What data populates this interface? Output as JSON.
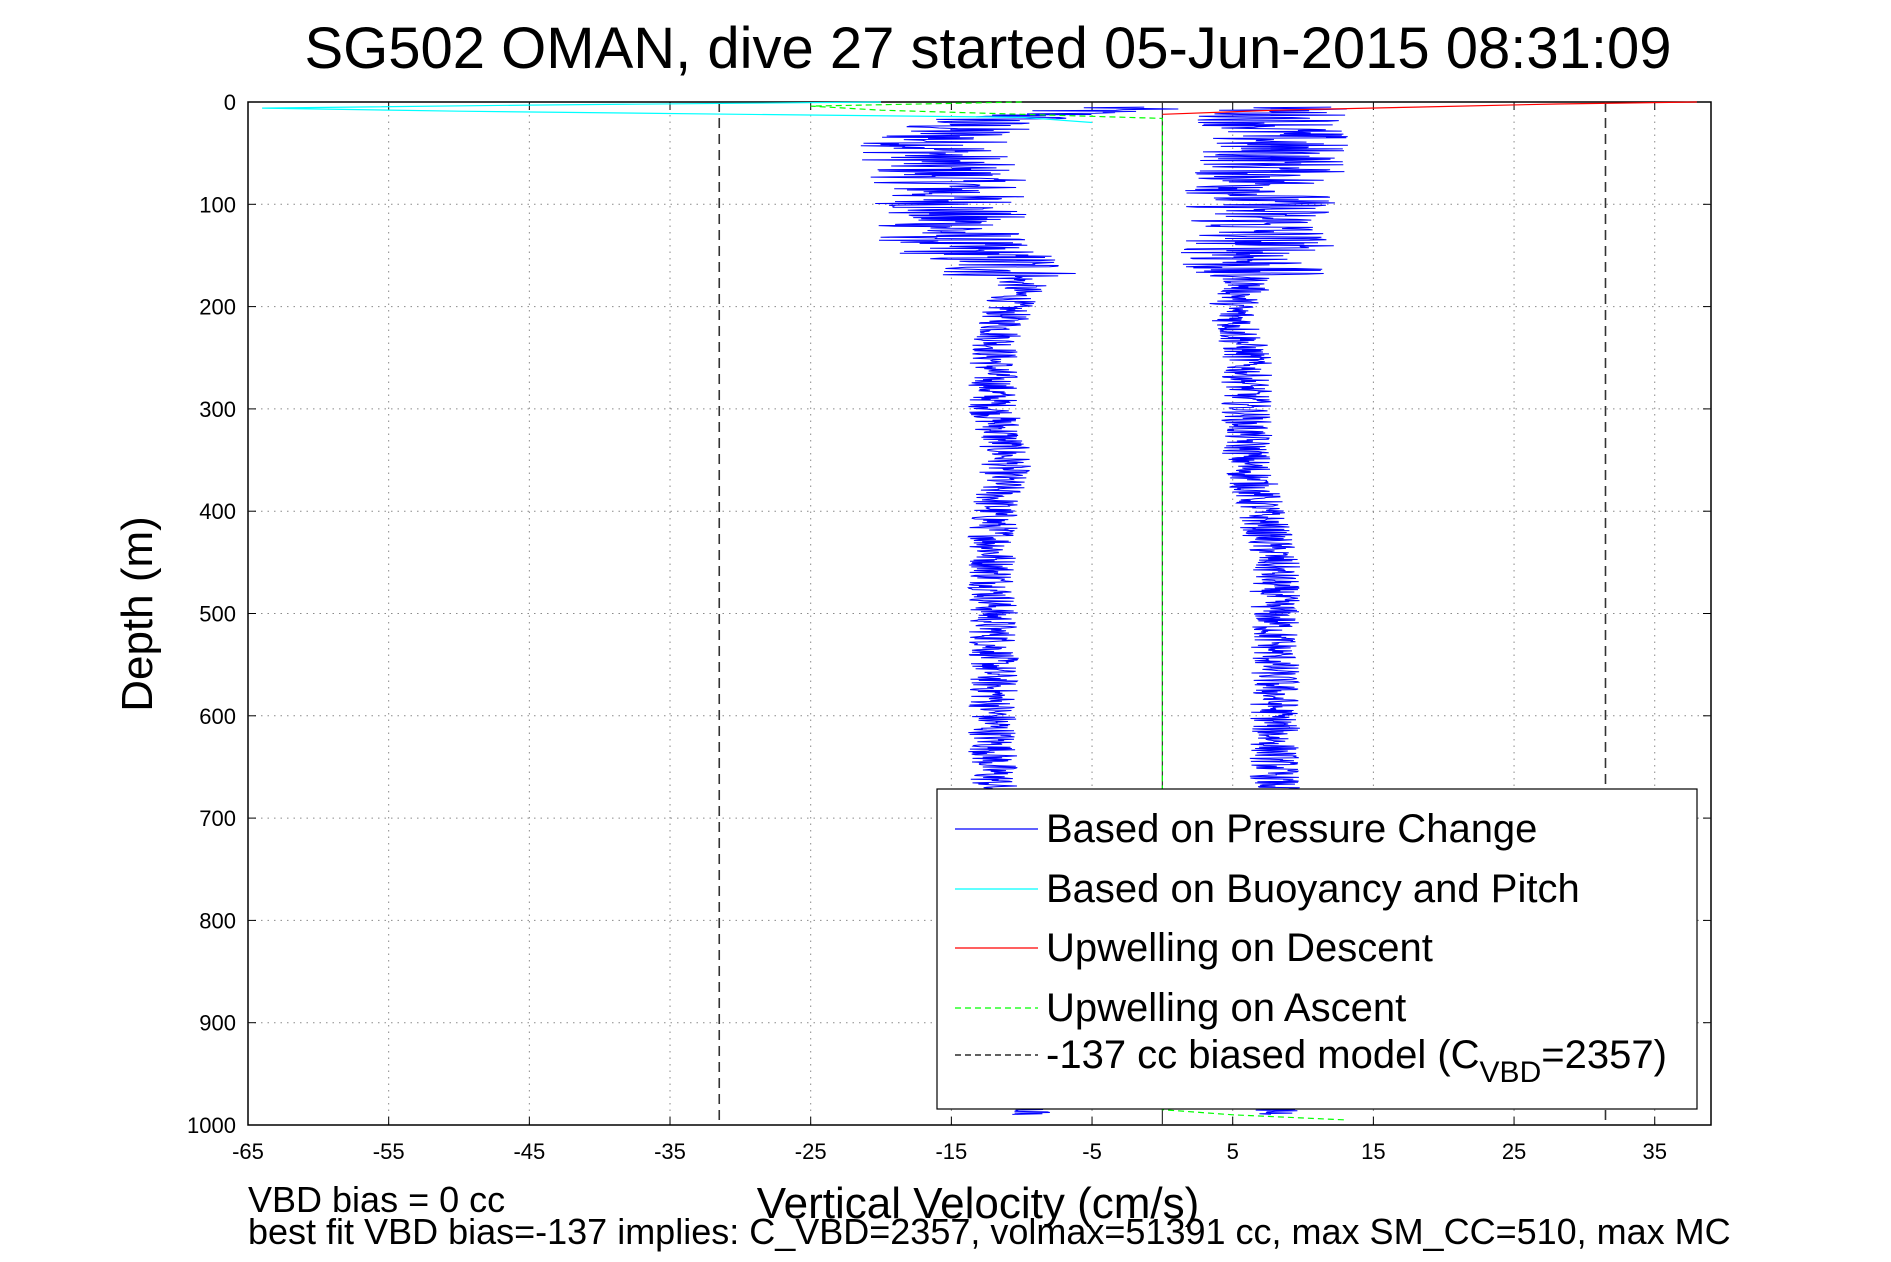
{
  "chart_data": {
    "type": "line",
    "title": "SG502 OMAN, dive 27 started 05-Jun-2015 08:31:09",
    "xlabel": "Vertical Velocity (cm/s)",
    "ylabel": "Depth (m)",
    "xlim": [
      -65,
      39
    ],
    "ylim": [
      0,
      1000
    ],
    "y_reversed": true,
    "grid": true,
    "xticks": [
      -65,
      -55,
      -45,
      -35,
      -25,
      -15,
      -5,
      5,
      15,
      25,
      35
    ],
    "yticks": [
      0,
      100,
      200,
      300,
      400,
      500,
      600,
      700,
      800,
      900,
      1000
    ],
    "legend_position": "lower-right",
    "legend": [
      {
        "label": "Based on Pressure Change",
        "color": "#0000ff",
        "style": "solid"
      },
      {
        "label": "Based on Buoyancy and Pitch",
        "color": "#00ffff",
        "style": "solid"
      },
      {
        "label": "Upwelling on Descent",
        "color": "#ff0000",
        "style": "solid"
      },
      {
        "label": "Upwelling on Ascent",
        "color": "#00ff00",
        "style": "dashed"
      },
      {
        "label_prefix": "-137 cc biased model (C",
        "label_sub": "VBD",
        "label_suffix": "=2357)",
        "color": "#000000",
        "style": "dashed"
      }
    ],
    "reference_lines": {
      "zero": 0,
      "model_dashed": [
        -31.5,
        31.5
      ]
    },
    "series": [
      {
        "name": "Based on Pressure Change",
        "color": "#0000ff",
        "segments": [
          {
            "part": "descent",
            "depth": [
              5,
              20,
              40,
              60,
              80,
              100,
              120,
              140,
              160,
              180,
              200,
              250,
              300,
              350,
              400,
              450,
              500,
              550,
              600,
              650,
              700,
              750,
              800,
              850,
              900,
              950,
              990
            ],
            "velocity": [
              -3,
              -14,
              -16,
              -16,
              -15,
              -15,
              -15,
              -15,
              -11,
              -10,
              -11,
              -12,
              -12,
              -11,
              -12,
              -12,
              -12,
              -12,
              -12,
              -12,
              -12,
              -12,
              -12,
              -12,
              -12,
              -12,
              -9
            ]
          },
          {
            "part": "ascent",
            "depth": [
              990,
              950,
              900,
              850,
              800,
              750,
              700,
              650,
              600,
              550,
              500,
              450,
              400,
              350,
              300,
              250,
              200,
              180,
              160,
              140,
              120,
              100,
              80,
              60,
              40,
              20,
              5
            ],
            "velocity": [
              8,
              8,
              8,
              8,
              8,
              8,
              8,
              8,
              8,
              8,
              8,
              8,
              7,
              6,
              6,
              6,
              5,
              6,
              6,
              7,
              7,
              7,
              7,
              8,
              8,
              8,
              8
            ]
          }
        ]
      },
      {
        "name": "Based on Buoyancy and Pitch",
        "color": "#00ffff",
        "depth": [
          0,
          3,
          6,
          9,
          12,
          15,
          20
        ],
        "velocity": [
          -20,
          -45,
          -64,
          -50,
          -30,
          -10,
          -5
        ]
      },
      {
        "name": "Upwelling on Descent",
        "color": "#ff0000",
        "depth": [
          0,
          2,
          5,
          8,
          12
        ],
        "velocity": [
          38,
          28,
          18,
          8,
          0
        ]
      },
      {
        "name": "Upwelling on Ascent",
        "color": "#00ff00",
        "depth": [
          0,
          4,
          8,
          12,
          16,
          985,
          990,
          995
        ],
        "velocity": [
          -10,
          -25,
          -20,
          -10,
          0,
          0,
          5,
          13
        ]
      }
    ]
  },
  "footnote": {
    "line1": "VBD bias = 0 cc",
    "line2": "best fit VBD bias=-137 implies: C_VBD=2357, volmax=51391 cc, max SM_CC=510, max MC"
  }
}
